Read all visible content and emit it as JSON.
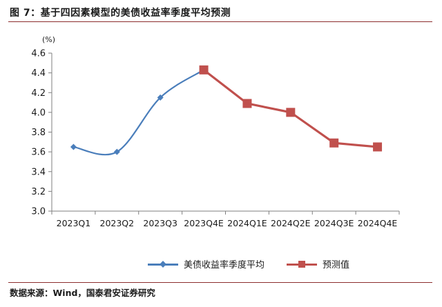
{
  "figure": {
    "title": "图 7：基于四因素模型的美债收益率季度平均预测",
    "source": "数据来源：Wind，国泰君安证券研究"
  },
  "chart_data": {
    "type": "line",
    "unit_label": "(%)",
    "categories": [
      "2023Q1",
      "2023Q2",
      "2023Q3",
      "2023Q4E",
      "2024Q1E",
      "2024Q2E",
      "2024Q3E",
      "2024Q4E"
    ],
    "ylim": [
      3.0,
      4.6
    ],
    "yticks": [
      3.0,
      3.2,
      3.4,
      3.6,
      3.8,
      4.0,
      4.2,
      4.4,
      4.6
    ],
    "grid": false,
    "legend_position": "bottom",
    "series": [
      {
        "name": "美债收益率季度平均",
        "color": "#4a7ebb",
        "marker": "diamond",
        "smooth": true,
        "values": [
          3.65,
          3.6,
          4.15,
          4.43,
          null,
          null,
          null,
          null
        ]
      },
      {
        "name": "预测值",
        "color": "#c0504d",
        "marker": "square",
        "smooth": false,
        "values": [
          null,
          null,
          null,
          4.43,
          4.09,
          4.0,
          3.69,
          3.65
        ]
      }
    ]
  }
}
